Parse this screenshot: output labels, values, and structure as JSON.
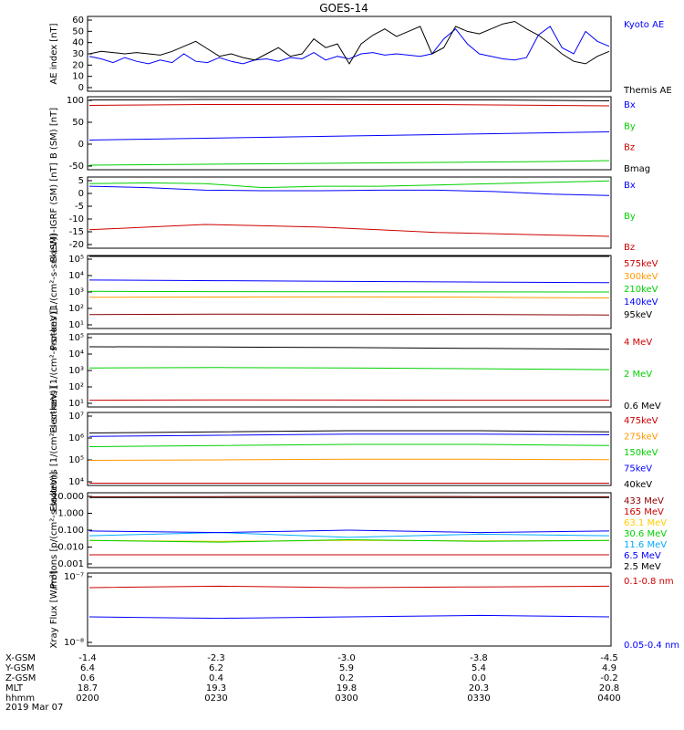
{
  "title": "GOES-14",
  "chart_data": [
    {
      "type": "line",
      "ylabel": "AE index [nT]",
      "ylim": [
        0,
        60
      ],
      "yticks": [
        "0",
        "10",
        "20",
        "30",
        "40",
        "50",
        "60"
      ],
      "series": [
        {
          "name": "Kyoto AE",
          "color": "#0000ff",
          "values": [
            28,
            26,
            23,
            27,
            24,
            22,
            25,
            23,
            30,
            24,
            23,
            27,
            24,
            22,
            25,
            26,
            24,
            27,
            26,
            31,
            25,
            28,
            26,
            30,
            31,
            29,
            30,
            29,
            28,
            30,
            42,
            50,
            38,
            30,
            28,
            26,
            25,
            27,
            45,
            52,
            35,
            30,
            48,
            40,
            36
          ]
        },
        {
          "name": "Themis AE",
          "color": "#000000",
          "values": [
            30,
            32,
            31,
            30,
            31,
            30,
            29,
            32,
            36,
            40,
            34,
            28,
            30,
            27,
            25,
            30,
            35,
            28,
            30,
            42,
            35,
            38,
            22,
            38,
            45,
            50,
            44,
            48,
            52,
            30,
            35,
            52,
            48,
            46,
            50,
            54,
            56,
            50,
            45,
            38,
            30,
            24,
            22,
            28,
            32
          ]
        }
      ]
    },
    {
      "type": "line",
      "ylabel": "B (SM) [nT]",
      "ylim": [
        -55,
        105
      ],
      "yticks": [
        "-50",
        "0",
        "50",
        "100"
      ],
      "series": [
        {
          "name": "Bx",
          "color": "#0000ff",
          "values": [
            10,
            12,
            14,
            16,
            18,
            20,
            22,
            24,
            26,
            28
          ]
        },
        {
          "name": "By",
          "color": "#00d000",
          "values": [
            -45,
            -44,
            -43,
            -42,
            -41,
            -40,
            -39,
            -38,
            -37,
            -35
          ]
        },
        {
          "name": "Bz",
          "color": "#cc0000",
          "values": [
            86,
            87,
            88,
            88,
            88,
            88,
            88,
            87,
            86,
            85
          ]
        },
        {
          "name": "Bmag",
          "color": "#000000",
          "values": [
            98,
            98,
            99,
            99,
            99,
            98,
            98,
            98,
            97,
            96
          ]
        }
      ]
    },
    {
      "type": "line",
      "ylabel": "B (SM)-IGRF (SM) [nT]",
      "ylim": [
        -21,
        6
      ],
      "yticks": [
        "-20",
        "-15",
        "-10",
        "-5",
        "0",
        "5"
      ],
      "series": [
        {
          "name": "Bx",
          "color": "#0000ff",
          "values": [
            2.5,
            2,
            1,
            0.8,
            0.8,
            1,
            1,
            0.5,
            -0.5,
            -1
          ]
        },
        {
          "name": "By",
          "color": "#00d000",
          "values": [
            3.5,
            3.8,
            3.5,
            2,
            2.5,
            2.5,
            3,
            3.5,
            4,
            4.5
          ]
        },
        {
          "name": "Bz",
          "color": "#cc0000",
          "values": [
            -14,
            -13,
            -12,
            -12.5,
            -13,
            -14,
            -15,
            -15.5,
            -16,
            -16.5
          ]
        }
      ]
    },
    {
      "type": "line",
      "ylabel": "Protons [1/(cm²-s-sr-keV)]",
      "scale": "log",
      "ylim": [
        0.5,
        6
      ],
      "yticks": [
        "10¹",
        "10²",
        "10³",
        "10⁴",
        "10⁵"
      ],
      "series": [
        {
          "name": "575keV",
          "color": "#cc0000",
          "values": [
            6,
            6,
            6,
            6,
            6
          ]
        },
        {
          "name": "300keV",
          "color": "#ff9900",
          "values": [
            2.85,
            2.87,
            2.88,
            2.86,
            2.8
          ]
        },
        {
          "name": "210keV",
          "color": "#00d000",
          "values": [
            3.3,
            3.28,
            3.27,
            3.26,
            3.25
          ]
        },
        {
          "name": "140keV",
          "color": "#0000ff",
          "values": [
            4.15,
            4.1,
            4.05,
            4.0,
            3.95
          ]
        },
        {
          "name": "95keV",
          "color": "#000000",
          "values": [
            6,
            6,
            6,
            6,
            6
          ]
        },
        {
          "name": "",
          "color": "#8b0000",
          "values": [
            1.55,
            1.58,
            1.57,
            1.56,
            1.52
          ]
        }
      ]
    },
    {
      "type": "line",
      "ylabel": "Electrons [1/(cm²-s-sr-keV)]",
      "scale": "log",
      "ylim": [
        0.8,
        5.1
      ],
      "yticks": [
        "10¹",
        "10²",
        "10³",
        "10⁴",
        "10⁵"
      ],
      "series": [
        {
          "name": "4 MeV",
          "color": "#cc0000",
          "values": [
            1.2,
            1.22,
            1.21,
            1.2,
            1.2
          ]
        },
        {
          "name": "2 MeV",
          "color": "#00d000",
          "values": [
            3.1,
            3.12,
            3.1,
            3.05,
            3.0
          ]
        },
        {
          "name": "0.6 MeV",
          "color": "#000000",
          "values": [
            4.35,
            4.33,
            4.3,
            4.25,
            4.2
          ]
        }
      ]
    },
    {
      "type": "line",
      "ylabel": "Electrons [1/(cm²-s-sr-keV)]",
      "scale": "log",
      "ylim": [
        3.8,
        7
      ],
      "yticks": [
        "10⁴",
        "10⁵",
        "10⁶",
        "10⁷"
      ],
      "series": [
        {
          "name": "475keV",
          "color": "#cc0000",
          "values": [
            3.9,
            3.9,
            3.9,
            3.9,
            3.9
          ]
        },
        {
          "name": "275keV",
          "color": "#ff9900",
          "values": [
            4.9,
            4.92,
            4.95,
            4.95,
            4.93
          ]
        },
        {
          "name": "150keV",
          "color": "#00d000",
          "values": [
            5.5,
            5.55,
            5.6,
            5.6,
            5.55
          ]
        },
        {
          "name": "75keV",
          "color": "#0000ff",
          "values": [
            5.95,
            6.0,
            6.05,
            6.05,
            6.02
          ]
        },
        {
          "name": "40keV",
          "color": "#000000",
          "values": [
            6.1,
            6.15,
            6.2,
            6.2,
            6.15
          ]
        }
      ]
    },
    {
      "type": "line",
      "ylabel": "Protons [p/(cm²-s-sr-keV)]",
      "scale": "log",
      "ylim": [
        -3.2,
        1.5
      ],
      "yticks": [
        "0.001",
        "0.010",
        "0.100",
        "1.000",
        "10.000"
      ],
      "series": [
        {
          "name": "433 MeV",
          "color": "#8b0000",
          "values": [
            1.25,
            1.26,
            1.27,
            1.26,
            1.25
          ]
        },
        {
          "name": "165 MeV",
          "color": "#cc0000",
          "values": [
            -2.4,
            -2.4,
            -2.4,
            -2.4,
            -2.4
          ]
        },
        {
          "name": "63.1 MeV",
          "color": "#ffcc00",
          "values": [
            -1.5,
            -1.55,
            -1.5,
            -1.52,
            -1.5
          ]
        },
        {
          "name": "30.6 MeV",
          "color": "#00d000",
          "values": [
            -1.5,
            -1.6,
            -1.45,
            -1.55,
            -1.5
          ]
        },
        {
          "name": "11.6 MeV",
          "color": "#00aaff",
          "values": [
            -1.2,
            -1.0,
            -1.3,
            -1.1,
            -1.2
          ]
        },
        {
          "name": "6.5 MeV",
          "color": "#0000ff",
          "values": [
            -0.9,
            -1.0,
            -0.85,
            -1.0,
            -0.9
          ]
        },
        {
          "name": "2.5 MeV",
          "color": "#000000",
          "values": [
            1.2,
            1.2,
            1.2,
            1.2,
            1.2
          ]
        }
      ]
    },
    {
      "type": "line",
      "ylabel": "Xray Flux [W/m²]",
      "scale": "log",
      "ylim": [
        -8,
        -7
      ],
      "yticks": [
        "10⁻⁸",
        "10⁻⁷"
      ],
      "series": [
        {
          "name": "0.1-0.8 nm",
          "color": "#cc0000",
          "values": [
            -7.2,
            -7.18,
            -7.2,
            -7.19,
            -7.18
          ]
        },
        {
          "name": "0.05-0.4 nm",
          "color": "#0000ff",
          "values": [
            -7.6,
            -7.62,
            -7.6,
            -7.58,
            -7.6
          ]
        }
      ]
    }
  ],
  "xaxis": {
    "rows": [
      {
        "label": "X-GSM",
        "values": [
          "-1.4",
          "-2.3",
          "-3.0",
          "-3.8",
          "-4.5"
        ]
      },
      {
        "label": "Y-GSM",
        "values": [
          "6.4",
          "6.2",
          "5.9",
          "5.4",
          "4.9"
        ]
      },
      {
        "label": "Z-GSM",
        "values": [
          "0.6",
          "0.4",
          "0.2",
          "0.0",
          "-0.2"
        ]
      },
      {
        "label": "MLT",
        "values": [
          "18.7",
          "19.3",
          "19.8",
          "20.3",
          "20.8"
        ]
      },
      {
        "label": "hhmm",
        "values": [
          "0200",
          "0230",
          "0300",
          "0330",
          "0400"
        ]
      }
    ],
    "date": "2019 Mar 07"
  }
}
